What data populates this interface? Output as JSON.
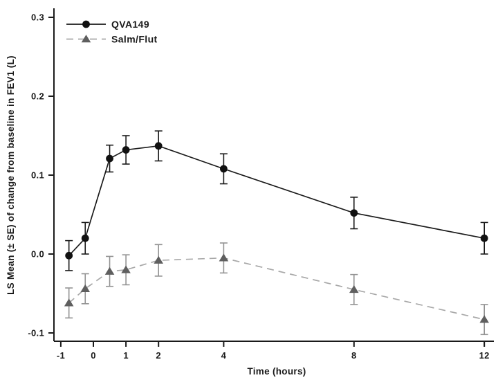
{
  "chart_data": {
    "type": "line",
    "title": "",
    "xlabel": "Time (hours)",
    "ylabel": "LS Mean (± SE) of change from baseline in FEV1 (L)",
    "x_ticks": [
      -1,
      0,
      1,
      2,
      4,
      8,
      12
    ],
    "y_ticks": [
      -0.1,
      0.0,
      0.1,
      0.2,
      0.3
    ],
    "xlim": [
      -1.2,
      12.3
    ],
    "ylim": [
      -0.11,
      0.31
    ],
    "grid": false,
    "legend_position": "top-left",
    "error_bars": "± SE",
    "series": [
      {
        "name": "QVA149",
        "marker": "circle",
        "line_style": "solid",
        "line_color": "#1a1a1a",
        "marker_color": "#111111",
        "error_color": "#1a1a1a",
        "x": [
          -0.75,
          -0.25,
          0.5,
          1,
          2,
          4,
          8,
          12
        ],
        "y": [
          -0.002,
          0.02,
          0.121,
          0.132,
          0.137,
          0.108,
          0.052,
          0.02
        ],
        "se": [
          0.019,
          0.02,
          0.017,
          0.018,
          0.019,
          0.019,
          0.02,
          0.02
        ]
      },
      {
        "name": "Salm/Flut",
        "marker": "triangle",
        "line_style": "dashed",
        "line_color": "#a8a8a8",
        "marker_color": "#5f5f5f",
        "error_color": "#939393",
        "x": [
          -0.75,
          -0.25,
          0.5,
          1,
          2,
          4,
          8,
          12
        ],
        "y": [
          -0.062,
          -0.044,
          -0.022,
          -0.02,
          -0.008,
          -0.005,
          -0.045,
          -0.083
        ],
        "se": [
          0.019,
          0.019,
          0.019,
          0.019,
          0.02,
          0.019,
          0.019,
          0.019
        ]
      }
    ]
  }
}
